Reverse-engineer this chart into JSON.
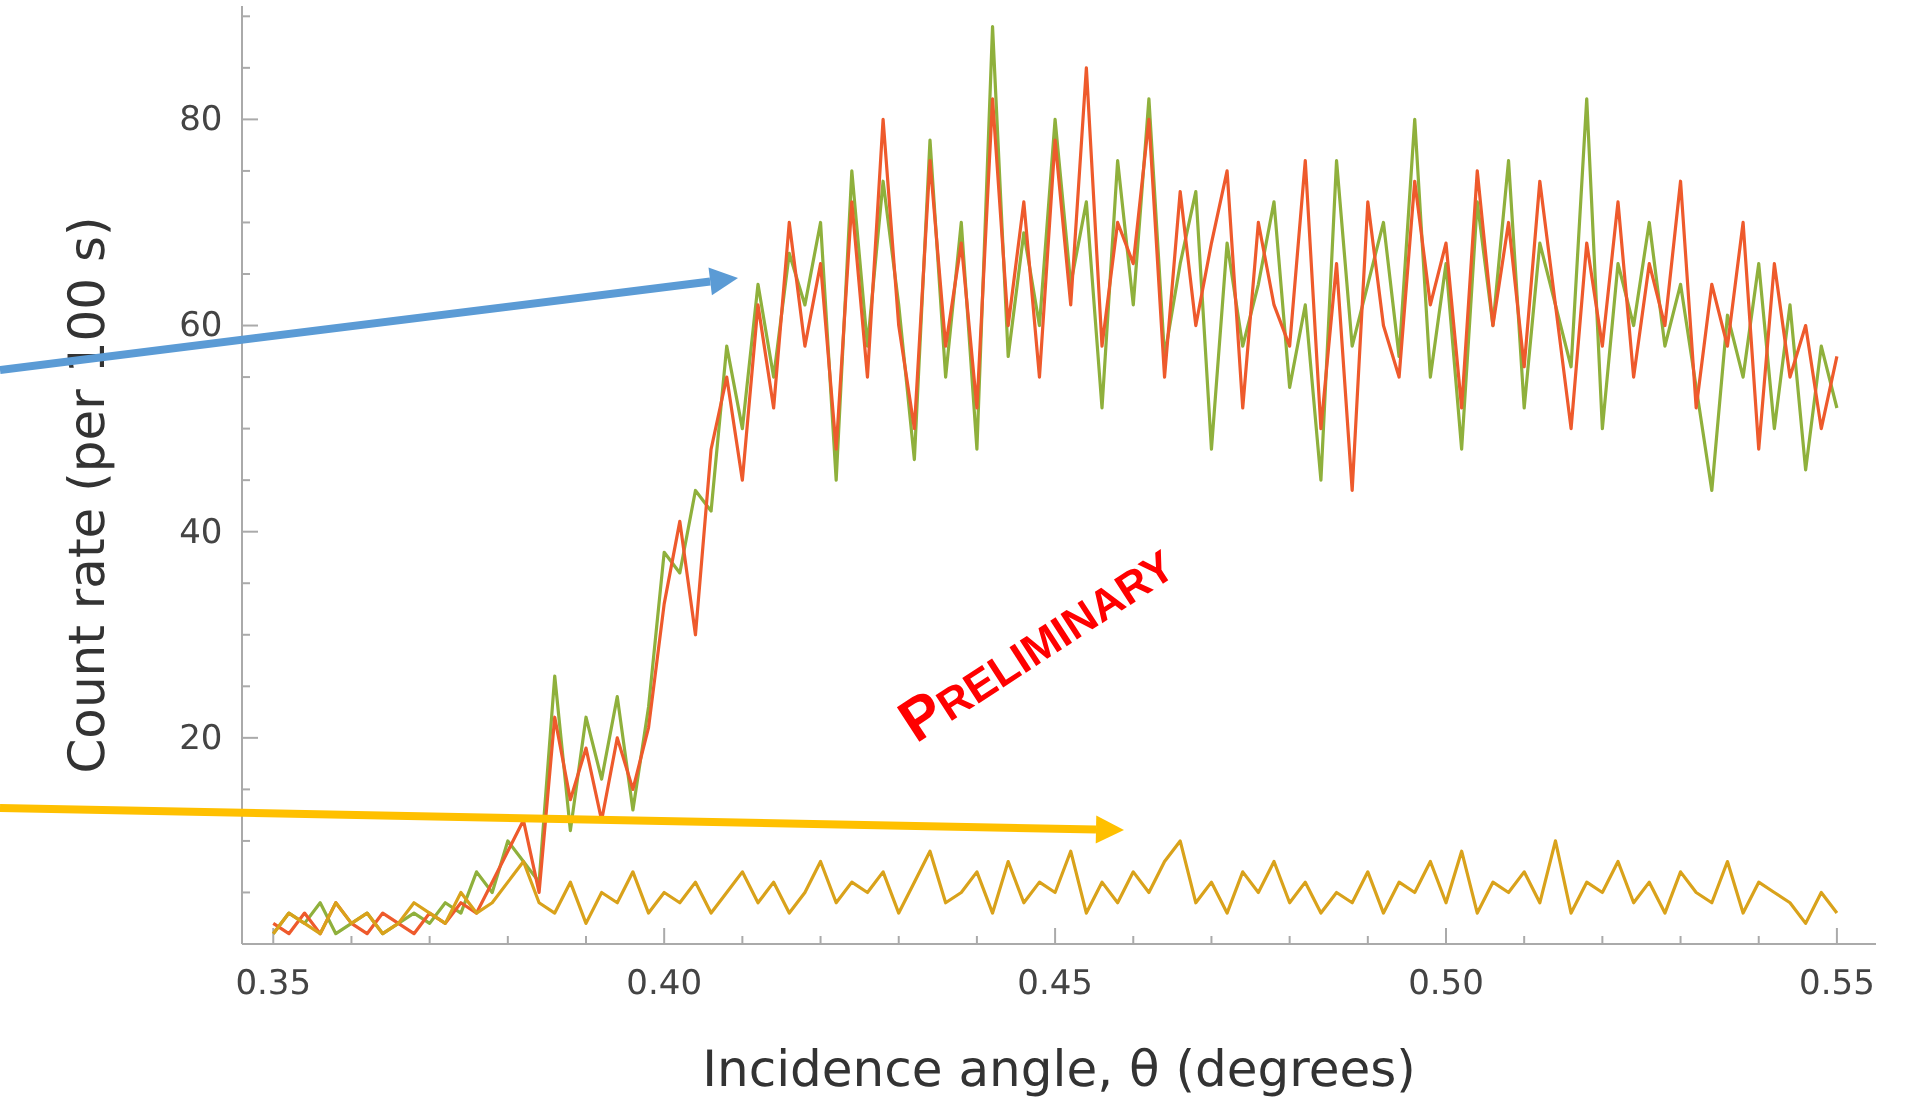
{
  "chart_data": {
    "type": "line",
    "xlabel": "Incidence angle, θ (degrees)",
    "ylabel": "Count rate (per 100 s)",
    "x": [
      0.35,
      0.352,
      0.354,
      0.356,
      0.358,
      0.36,
      0.362,
      0.364,
      0.366,
      0.368,
      0.37,
      0.372,
      0.374,
      0.376,
      0.378,
      0.38,
      0.382,
      0.384,
      0.386,
      0.388,
      0.39,
      0.392,
      0.394,
      0.396,
      0.398,
      0.4,
      0.402,
      0.404,
      0.406,
      0.408,
      0.41,
      0.412,
      0.414,
      0.416,
      0.418,
      0.42,
      0.422,
      0.424,
      0.426,
      0.428,
      0.43,
      0.432,
      0.434,
      0.436,
      0.438,
      0.44,
      0.442,
      0.444,
      0.446,
      0.448,
      0.45,
      0.452,
      0.454,
      0.456,
      0.458,
      0.46,
      0.462,
      0.464,
      0.466,
      0.468,
      0.47,
      0.472,
      0.474,
      0.476,
      0.478,
      0.48,
      0.482,
      0.484,
      0.486,
      0.488,
      0.49,
      0.492,
      0.494,
      0.496,
      0.498,
      0.5,
      0.502,
      0.504,
      0.506,
      0.508,
      0.51,
      0.512,
      0.514,
      0.516,
      0.518,
      0.52,
      0.522,
      0.524,
      0.526,
      0.528,
      0.53,
      0.532,
      0.534,
      0.536,
      0.538,
      0.54,
      0.542,
      0.544,
      0.546,
      0.548,
      0.55
    ],
    "series": [
      {
        "color": "#8fb03c",
        "values": [
          1,
          3,
          2,
          4,
          1,
          2,
          3,
          1,
          2,
          3,
          2,
          4,
          3,
          7,
          5,
          10,
          8,
          6,
          26,
          11,
          22,
          16,
          24,
          13,
          23,
          38,
          36,
          44,
          42,
          58,
          50,
          64,
          55,
          67,
          62,
          70,
          45,
          75,
          58,
          74,
          62,
          47,
          78,
          55,
          70,
          48,
          89,
          57,
          69,
          60,
          80,
          64,
          72,
          52,
          76,
          62,
          82,
          57,
          66,
          73,
          48,
          68,
          58,
          64,
          72,
          54,
          62,
          45,
          76,
          58,
          64,
          70,
          57,
          80,
          55,
          66,
          48,
          72,
          60,
          76,
          52,
          68,
          62,
          56,
          82,
          50,
          66,
          60,
          70,
          58,
          64,
          54,
          44,
          61,
          55,
          66,
          50,
          62,
          46,
          58,
          52
        ]
      },
      {
        "color": "#ee5a2c",
        "values": [
          2,
          1,
          3,
          1,
          4,
          2,
          1,
          3,
          2,
          1,
          3,
          2,
          4,
          3,
          6,
          9,
          12,
          5,
          22,
          14,
          19,
          12,
          20,
          15,
          21,
          33,
          41,
          30,
          48,
          55,
          45,
          62,
          52,
          70,
          58,
          66,
          48,
          72,
          55,
          80,
          60,
          50,
          76,
          58,
          68,
          52,
          82,
          60,
          72,
          55,
          78,
          62,
          85,
          58,
          70,
          66,
          80,
          55,
          73,
          60,
          68,
          75,
          52,
          70,
          62,
          58,
          76,
          50,
          66,
          44,
          72,
          60,
          55,
          74,
          62,
          68,
          52,
          75,
          60,
          70,
          56,
          74,
          62,
          50,
          68,
          58,
          72,
          55,
          66,
          60,
          74,
          52,
          64,
          58,
          70,
          48,
          66,
          55,
          60,
          50,
          57
        ]
      },
      {
        "color": "#d9a21b",
        "values": [
          1,
          3,
          2,
          1,
          4,
          2,
          3,
          1,
          2,
          4,
          3,
          2,
          5,
          3,
          4,
          6,
          8,
          4,
          3,
          6,
          2,
          5,
          4,
          7,
          3,
          5,
          4,
          6,
          3,
          5,
          7,
          4,
          6,
          3,
          5,
          8,
          4,
          6,
          5,
          7,
          3,
          6,
          9,
          4,
          5,
          7,
          3,
          8,
          4,
          6,
          5,
          9,
          3,
          6,
          4,
          7,
          5,
          8,
          10,
          4,
          6,
          3,
          7,
          5,
          8,
          4,
          6,
          3,
          5,
          4,
          7,
          3,
          6,
          5,
          8,
          4,
          9,
          3,
          6,
          5,
          7,
          4,
          10,
          3,
          6,
          5,
          8,
          4,
          6,
          3,
          7,
          5,
          4,
          8,
          3,
          6,
          5,
          4,
          2,
          5,
          3
        ]
      }
    ],
    "xlim": [
      0.346,
      0.555
    ],
    "ylim": [
      0,
      91
    ],
    "xticks": [
      0.35,
      {
        "value": 0.36,
        "label": null
      },
      {
        "value": 0.37,
        "label": null
      },
      {
        "value": 0.38,
        "label": null
      },
      {
        "value": 0.39,
        "label": null
      },
      {
        "value": 0.4,
        "label": "0.40"
      },
      {
        "value": 0.41,
        "label": null
      },
      {
        "value": 0.42,
        "label": null
      },
      {
        "value": 0.43,
        "label": null
      },
      {
        "value": 0.44,
        "label": null
      },
      0.45,
      {
        "value": 0.46,
        "label": null
      },
      {
        "value": 0.47,
        "label": null
      },
      {
        "value": 0.48,
        "label": null
      },
      {
        "value": 0.49,
        "label": null
      },
      {
        "value": 0.5,
        "label": "0.50"
      },
      {
        "value": 0.51,
        "label": null
      },
      {
        "value": 0.52,
        "label": null
      },
      {
        "value": 0.53,
        "label": null
      },
      {
        "value": 0.54,
        "label": null
      },
      0.55
    ],
    "yticks": [
      {
        "value": 5,
        "label": null
      },
      {
        "value": 10,
        "label": null
      },
      {
        "value": 15,
        "label": null
      },
      20,
      {
        "value": 25,
        "label": null
      },
      {
        "value": 30,
        "label": null
      },
      {
        "value": 35,
        "label": null
      },
      40,
      {
        "value": 45,
        "label": null
      },
      {
        "value": 50,
        "label": null
      },
      {
        "value": 55,
        "label": null
      },
      60,
      {
        "value": 65,
        "label": null
      },
      {
        "value": 70,
        "label": null
      },
      {
        "value": 75,
        "label": null
      },
      80,
      {
        "value": 85,
        "label": null
      },
      {
        "value": 90,
        "label": null
      }
    ],
    "marker": "none",
    "line_style": "solid",
    "annotations": [
      "PRELIMINARY"
    ]
  }
}
